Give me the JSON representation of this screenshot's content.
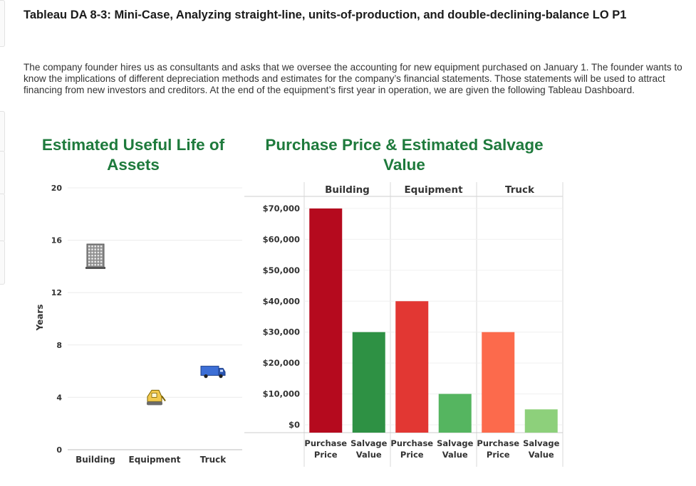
{
  "page": {
    "title": "Tableau DA 8-3: Mini-Case, Analyzing straight-line, units-of-production, and double-declining-balance LO P1",
    "intro": "The company founder hires us as consultants and asks that we oversee the accounting for new equipment purchased on January 1. The founder wants to know the implications of different depreciation methods and estimates for the company’s financial statements. Those statements will be used to attract financing from new investors and creditors. At the end of the equipment’s first year in operation, we are given the following Tableau Dashboard."
  },
  "chart_data": [
    {
      "type": "scatter",
      "title": "Estimated Useful Life of Assets",
      "ylabel": "Years",
      "xlabel": "",
      "ylim": [
        0,
        20
      ],
      "yticks": [
        0,
        4,
        8,
        12,
        16,
        20
      ],
      "grid": true,
      "categories": [
        "Building",
        "Equipment",
        "Truck"
      ],
      "values": [
        15,
        4,
        6
      ],
      "icons": [
        "building-icon",
        "equipment-icon",
        "truck-icon"
      ]
    },
    {
      "type": "bar",
      "title": "Purchase Price & Estimated Salvage Value",
      "groups": [
        "Building",
        "Equipment",
        "Truck"
      ],
      "categories": [
        "Purchase Price",
        "Salvage Value"
      ],
      "series": [
        {
          "group": "Building",
          "values": [
            70000,
            30000
          ],
          "colors": [
            "#b50a1e",
            "#2e9144"
          ]
        },
        {
          "group": "Equipment",
          "values": [
            40000,
            10000
          ],
          "colors": [
            "#e23733",
            "#55b560"
          ]
        },
        {
          "group": "Truck",
          "values": [
            30000,
            5000
          ],
          "colors": [
            "#fc6a4c",
            "#8dd07b"
          ]
        }
      ],
      "ylim": [
        0,
        70000
      ],
      "yticks": [
        "$0",
        "$10,000",
        "$20,000",
        "$30,000",
        "$40,000",
        "$50,000",
        "$60,000",
        "$70,000"
      ],
      "ytick_values": [
        0,
        10000,
        20000,
        30000,
        40000,
        50000,
        60000,
        70000
      ],
      "grid": true
    }
  ]
}
